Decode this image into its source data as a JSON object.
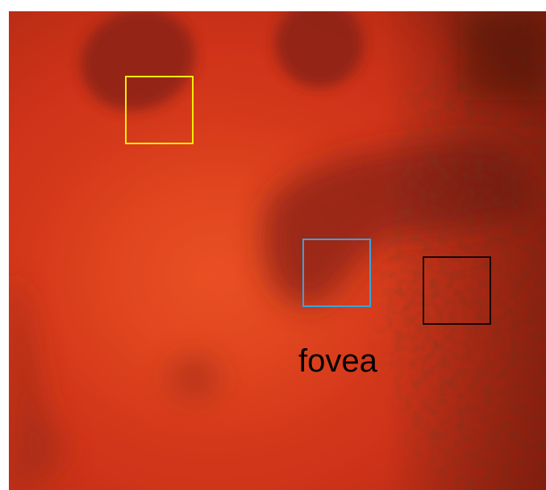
{
  "image": {
    "subject": "retina",
    "colors": {
      "tissue_base": "#cf3319",
      "tissue_bright": "#e2481f",
      "vessel_shadow": "#8a2312",
      "page_background": "#ffffff"
    }
  },
  "regions": [
    {
      "name": "yellow-box",
      "color": "#ffee00"
    },
    {
      "name": "blue-box",
      "color": "#3aa3dc"
    },
    {
      "name": "black-box",
      "color": "#1a0500"
    }
  ],
  "labels": {
    "fovea": "fovea"
  }
}
